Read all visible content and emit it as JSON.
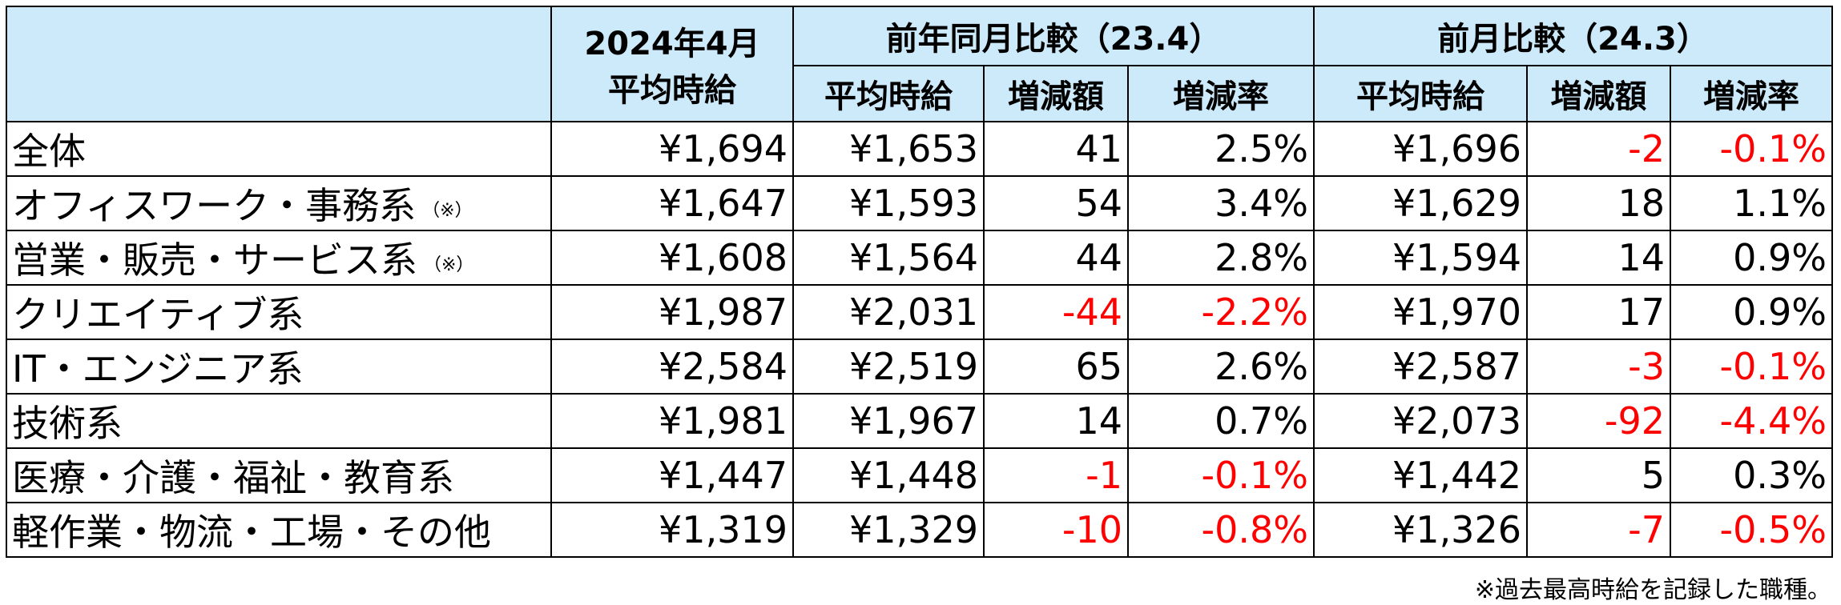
{
  "header": {
    "date": "2024年4月",
    "avg": "平均時給",
    "yoy": "前年同月比較（23.4）",
    "mom": "前月比較（24.3）",
    "subcolumns": [
      "平均時給",
      "増減額",
      "増減率",
      "平均時給",
      "増減額",
      "増減率"
    ]
  },
  "table": {
    "rows": [
      {
        "label": "全体",
        "cells": [
          "¥1,694",
          "¥1,653",
          "41",
          "2.5%",
          "¥1,696",
          "-2",
          "-0.1%"
        ]
      },
      {
        "label": "オフィスワーク・事務系",
        "mark": "（※）",
        "cells": [
          "¥1,647",
          "¥1,593",
          "54",
          "3.4%",
          "¥1,629",
          "18",
          "1.1%"
        ]
      },
      {
        "label": "営業・販売・サービス系",
        "mark": "（※）",
        "cells": [
          "¥1,608",
          "¥1,564",
          "44",
          "2.8%",
          "¥1,594",
          "14",
          "0.9%"
        ]
      },
      {
        "label": "クリエイティブ系",
        "cells": [
          "¥1,987",
          "¥2,031",
          "-44",
          "-2.2%",
          "¥1,970",
          "17",
          "0.9%"
        ]
      },
      {
        "label": "IT・エンジニア系",
        "cells": [
          "¥2,584",
          "¥2,519",
          "65",
          "2.6%",
          "¥2,587",
          "-3",
          "-0.1%"
        ]
      },
      {
        "label": "技術系",
        "cells": [
          "¥1,981",
          "¥1,967",
          "14",
          "0.7%",
          "¥2,073",
          "-92",
          "-4.4%"
        ]
      },
      {
        "label": "医療・介護・福祉・教育系",
        "cells": [
          "¥1,447",
          "¥1,448",
          "-1",
          "-0.1%",
          "¥1,442",
          "5",
          "0.3%"
        ]
      },
      {
        "label": "軽作業・物流・工場・その他",
        "cells": [
          "¥1,319",
          "¥1,329",
          "-10",
          "-0.8%",
          "¥1,326",
          "-7",
          "-0.5%"
        ]
      }
    ]
  },
  "note": "※過去最高時給を記録した職種。"
}
